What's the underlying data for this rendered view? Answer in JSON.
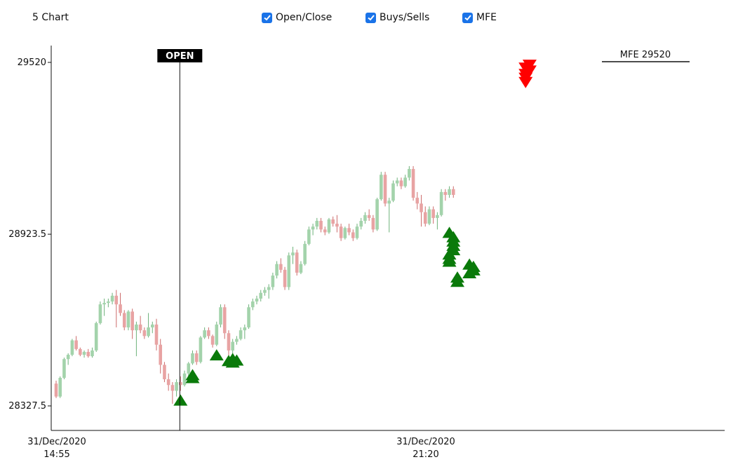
{
  "header": {
    "title": "5 Chart",
    "toggles": [
      {
        "label": "Open/Close",
        "checked": true
      },
      {
        "label": "Buys/Sells",
        "checked": true
      },
      {
        "label": "MFE",
        "checked": true
      }
    ]
  },
  "colors": {
    "up": "#a3d3ab",
    "down": "#e8a3a3",
    "wick_up": "#6db27a",
    "wick_down": "#cc6b6b",
    "buy": "#0a7a0a",
    "sell": "#ff0000",
    "open_label_bg": "#000000"
  },
  "chart_data": {
    "type": "candlestick",
    "y_ticks": [
      "29520",
      "28923.5",
      "28327.5"
    ],
    "x_ticks": [
      {
        "date": "31/Dec/2020",
        "time": "14:55"
      },
      {
        "date": "31/Dec/2020",
        "time": "21:20"
      }
    ],
    "open_marker": {
      "label": "OPEN",
      "bar_index": 31
    },
    "mfe": {
      "label": "MFE 29520",
      "value": 29520
    },
    "buy_markers": [
      {
        "bar": 31,
        "price": 28348
      },
      {
        "bar": 34,
        "price": 28426
      },
      {
        "bar": 34,
        "price": 28436
      },
      {
        "bar": 40,
        "price": 28505
      },
      {
        "bar": 43,
        "price": 28485
      },
      {
        "bar": 44,
        "price": 28480
      },
      {
        "bar": 45,
        "price": 28487
      },
      {
        "bar": 44,
        "price": 28492
      },
      {
        "bar": 98,
        "price": 28830
      },
      {
        "bar": 98,
        "price": 28840
      },
      {
        "bar": 98,
        "price": 28855
      },
      {
        "bar": 99,
        "price": 28870
      },
      {
        "bar": 99,
        "price": 28885
      },
      {
        "bar": 99,
        "price": 28900
      },
      {
        "bar": 99,
        "price": 28915
      },
      {
        "bar": 98,
        "price": 28930
      },
      {
        "bar": 100,
        "price": 28760
      },
      {
        "bar": 100,
        "price": 28775
      },
      {
        "bar": 103,
        "price": 28790
      },
      {
        "bar": 104,
        "price": 28800
      },
      {
        "bar": 104,
        "price": 28812
      },
      {
        "bar": 103,
        "price": 28820
      }
    ],
    "sell_markers": [
      {
        "bar": 117,
        "price": 29450
      },
      {
        "bar": 117,
        "price": 29465
      },
      {
        "bar": 117,
        "price": 29478
      },
      {
        "bar": 118,
        "price": 29490
      },
      {
        "bar": 117,
        "price": 29500
      },
      {
        "bar": 118,
        "price": 29510
      }
    ],
    "candles": [
      [
        28405,
        28415,
        28355,
        28360
      ],
      [
        28360,
        28430,
        28355,
        28425
      ],
      [
        28425,
        28495,
        28420,
        28490
      ],
      [
        28490,
        28510,
        28470,
        28505
      ],
      [
        28505,
        28560,
        28500,
        28555
      ],
      [
        28555,
        28570,
        28520,
        28525
      ],
      [
        28525,
        28530,
        28500,
        28505
      ],
      [
        28505,
        28520,
        28495,
        28515
      ],
      [
        28515,
        28525,
        28495,
        28500
      ],
      [
        28500,
        28530,
        28495,
        28520
      ],
      [
        28520,
        28620,
        28515,
        28615
      ],
      [
        28615,
        28690,
        28610,
        28680
      ],
      [
        28680,
        28700,
        28640,
        28685
      ],
      [
        28685,
        28700,
        28670,
        28690
      ],
      [
        28690,
        28720,
        28680,
        28710
      ],
      [
        28710,
        28730,
        28600,
        28680
      ],
      [
        28680,
        28720,
        28640,
        28650
      ],
      [
        28650,
        28660,
        28590,
        28600
      ],
      [
        28600,
        28660,
        28590,
        28655
      ],
      [
        28655,
        28665,
        28560,
        28590
      ],
      [
        28590,
        28620,
        28500,
        28610
      ],
      [
        28610,
        28640,
        28580,
        28590
      ],
      [
        28590,
        28600,
        28560,
        28570
      ],
      [
        28570,
        28650,
        28565,
        28600
      ],
      [
        28600,
        28620,
        28580,
        28610
      ],
      [
        28610,
        28630,
        28520,
        28540
      ],
      [
        28540,
        28560,
        28440,
        28470
      ],
      [
        28470,
        28480,
        28410,
        28420
      ],
      [
        28420,
        28440,
        28380,
        28400
      ],
      [
        28400,
        28410,
        28335,
        28380
      ],
      [
        28380,
        28420,
        28360,
        28410
      ],
      [
        28410,
        28430,
        28380,
        28400
      ],
      [
        28400,
        28450,
        28395,
        28440
      ],
      [
        28440,
        28480,
        28430,
        28475
      ],
      [
        28475,
        28520,
        28470,
        28510
      ],
      [
        28510,
        28520,
        28470,
        28480
      ],
      [
        28480,
        28570,
        28475,
        28565
      ],
      [
        28565,
        28600,
        28560,
        28590
      ],
      [
        28590,
        28600,
        28560,
        28570
      ],
      [
        28570,
        28575,
        28530,
        28540
      ],
      [
        28540,
        28620,
        28535,
        28610
      ],
      [
        28610,
        28680,
        28600,
        28670
      ],
      [
        28670,
        28680,
        28560,
        28580
      ],
      [
        28580,
        28590,
        28500,
        28520
      ],
      [
        28520,
        28560,
        28510,
        28550
      ],
      [
        28550,
        28570,
        28540,
        28560
      ],
      [
        28560,
        28600,
        28555,
        28590
      ],
      [
        28590,
        28610,
        28560,
        28600
      ],
      [
        28600,
        28680,
        28595,
        28670
      ],
      [
        28670,
        28700,
        28660,
        28690
      ],
      [
        28690,
        28710,
        28680,
        28700
      ],
      [
        28700,
        28730,
        28690,
        28720
      ],
      [
        28720,
        28740,
        28710,
        28730
      ],
      [
        28730,
        28750,
        28700,
        28740
      ],
      [
        28740,
        28790,
        28730,
        28780
      ],
      [
        28780,
        28830,
        28770,
        28820
      ],
      [
        28820,
        28840,
        28790,
        28800
      ],
      [
        28800,
        28810,
        28730,
        28740
      ],
      [
        28740,
        28860,
        28730,
        28850
      ],
      [
        28850,
        28880,
        28820,
        28860
      ],
      [
        28860,
        28870,
        28780,
        28790
      ],
      [
        28790,
        28830,
        28785,
        28820
      ],
      [
        28820,
        28900,
        28815,
        28890
      ],
      [
        28890,
        28950,
        28885,
        28940
      ],
      [
        28940,
        28960,
        28920,
        28950
      ],
      [
        28950,
        28980,
        28940,
        28970
      ],
      [
        28970,
        28980,
        28930,
        28940
      ],
      [
        28940,
        28950,
        28920,
        28930
      ],
      [
        28930,
        28980,
        28925,
        28975
      ],
      [
        28975,
        28985,
        28950,
        28960
      ],
      [
        28960,
        28990,
        28930,
        28950
      ],
      [
        28950,
        28960,
        28900,
        28910
      ],
      [
        28910,
        28950,
        28905,
        28945
      ],
      [
        28945,
        28960,
        28920,
        28930
      ],
      [
        28930,
        28940,
        28900,
        28910
      ],
      [
        28910,
        28960,
        28905,
        28950
      ],
      [
        28950,
        28980,
        28940,
        28970
      ],
      [
        28970,
        29000,
        28960,
        28990
      ],
      [
        28990,
        29010,
        28970,
        28980
      ],
      [
        28980,
        28990,
        28930,
        28940
      ],
      [
        28940,
        29050,
        28935,
        29045
      ],
      [
        29045,
        29140,
        29040,
        29130
      ],
      [
        29130,
        29140,
        29020,
        29030
      ],
      [
        29030,
        29050,
        28930,
        29040
      ],
      [
        29040,
        29110,
        29035,
        29100
      ],
      [
        29100,
        29120,
        29090,
        29110
      ],
      [
        29110,
        29120,
        29080,
        29090
      ],
      [
        29090,
        29130,
        29085,
        29120
      ],
      [
        29120,
        29160,
        29110,
        29150
      ],
      [
        29150,
        29160,
        29040,
        29050
      ],
      [
        29050,
        29070,
        29010,
        29030
      ],
      [
        29030,
        29060,
        28950,
        29000
      ],
      [
        29000,
        29020,
        28950,
        28960
      ],
      [
        28960,
        29020,
        28955,
        29010
      ],
      [
        29010,
        29020,
        28960,
        28980
      ],
      [
        28980,
        29000,
        28940,
        28990
      ],
      [
        28990,
        29080,
        28985,
        29070
      ],
      [
        29070,
        29080,
        29040,
        29060
      ],
      [
        29060,
        29090,
        29050,
        29080
      ],
      [
        29080,
        29090,
        29050,
        29060
      ]
    ]
  }
}
